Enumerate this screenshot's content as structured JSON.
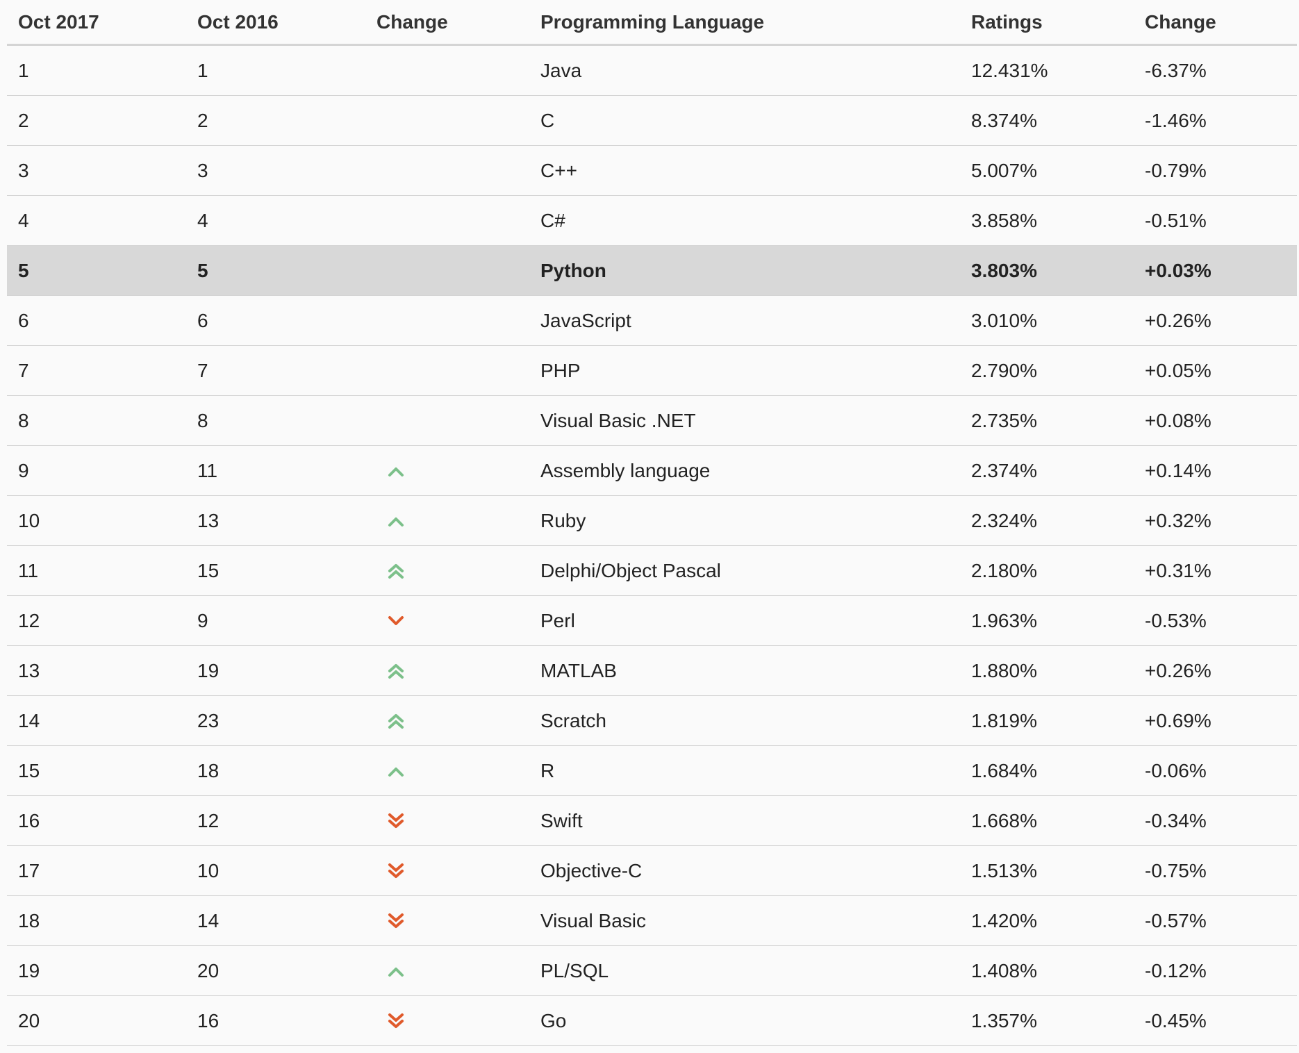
{
  "table": {
    "headers": [
      "Oct 2017",
      "Oct 2016",
      "Change",
      "Programming Language",
      "Ratings",
      "Change"
    ],
    "highlight_row": 5,
    "colors": {
      "up": "#7cc08a",
      "down": "#e05a2b",
      "highlight": "#d8d8d8"
    },
    "rows": [
      {
        "rank_2017": "1",
        "rank_2016": "1",
        "trend": "none",
        "language": "Java",
        "rating": "12.431%",
        "change": "-6.37%"
      },
      {
        "rank_2017": "2",
        "rank_2016": "2",
        "trend": "none",
        "language": "C",
        "rating": "8.374%",
        "change": "-1.46%"
      },
      {
        "rank_2017": "3",
        "rank_2016": "3",
        "trend": "none",
        "language": "C++",
        "rating": "5.007%",
        "change": "-0.79%"
      },
      {
        "rank_2017": "4",
        "rank_2016": "4",
        "trend": "none",
        "language": "C#",
        "rating": "3.858%",
        "change": "-0.51%"
      },
      {
        "rank_2017": "5",
        "rank_2016": "5",
        "trend": "none",
        "language": "Python",
        "rating": "3.803%",
        "change": "+0.03%"
      },
      {
        "rank_2017": "6",
        "rank_2016": "6",
        "trend": "none",
        "language": "JavaScript",
        "rating": "3.010%",
        "change": "+0.26%"
      },
      {
        "rank_2017": "7",
        "rank_2016": "7",
        "trend": "none",
        "language": "PHP",
        "rating": "2.790%",
        "change": "+0.05%"
      },
      {
        "rank_2017": "8",
        "rank_2016": "8",
        "trend": "none",
        "language": "Visual Basic .NET",
        "rating": "2.735%",
        "change": "+0.08%"
      },
      {
        "rank_2017": "9",
        "rank_2016": "11",
        "trend": "up",
        "language": "Assembly language",
        "rating": "2.374%",
        "change": "+0.14%"
      },
      {
        "rank_2017": "10",
        "rank_2016": "13",
        "trend": "up",
        "language": "Ruby",
        "rating": "2.324%",
        "change": "+0.32%"
      },
      {
        "rank_2017": "11",
        "rank_2016": "15",
        "trend": "double-up",
        "language": "Delphi/Object Pascal",
        "rating": "2.180%",
        "change": "+0.31%"
      },
      {
        "rank_2017": "12",
        "rank_2016": "9",
        "trend": "down",
        "language": "Perl",
        "rating": "1.963%",
        "change": "-0.53%"
      },
      {
        "rank_2017": "13",
        "rank_2016": "19",
        "trend": "double-up",
        "language": "MATLAB",
        "rating": "1.880%",
        "change": "+0.26%"
      },
      {
        "rank_2017": "14",
        "rank_2016": "23",
        "trend": "double-up",
        "language": "Scratch",
        "rating": "1.819%",
        "change": "+0.69%"
      },
      {
        "rank_2017": "15",
        "rank_2016": "18",
        "trend": "up",
        "language": "R",
        "rating": "1.684%",
        "change": "-0.06%"
      },
      {
        "rank_2017": "16",
        "rank_2016": "12",
        "trend": "double-down",
        "language": "Swift",
        "rating": "1.668%",
        "change": "-0.34%"
      },
      {
        "rank_2017": "17",
        "rank_2016": "10",
        "trend": "double-down",
        "language": "Objective-C",
        "rating": "1.513%",
        "change": "-0.75%"
      },
      {
        "rank_2017": "18",
        "rank_2016": "14",
        "trend": "double-down",
        "language": "Visual Basic",
        "rating": "1.420%",
        "change": "-0.57%"
      },
      {
        "rank_2017": "19",
        "rank_2016": "20",
        "trend": "up",
        "language": "PL/SQL",
        "rating": "1.408%",
        "change": "-0.12%"
      },
      {
        "rank_2017": "20",
        "rank_2016": "16",
        "trend": "double-down",
        "language": "Go",
        "rating": "1.357%",
        "change": "-0.45%"
      }
    ]
  }
}
